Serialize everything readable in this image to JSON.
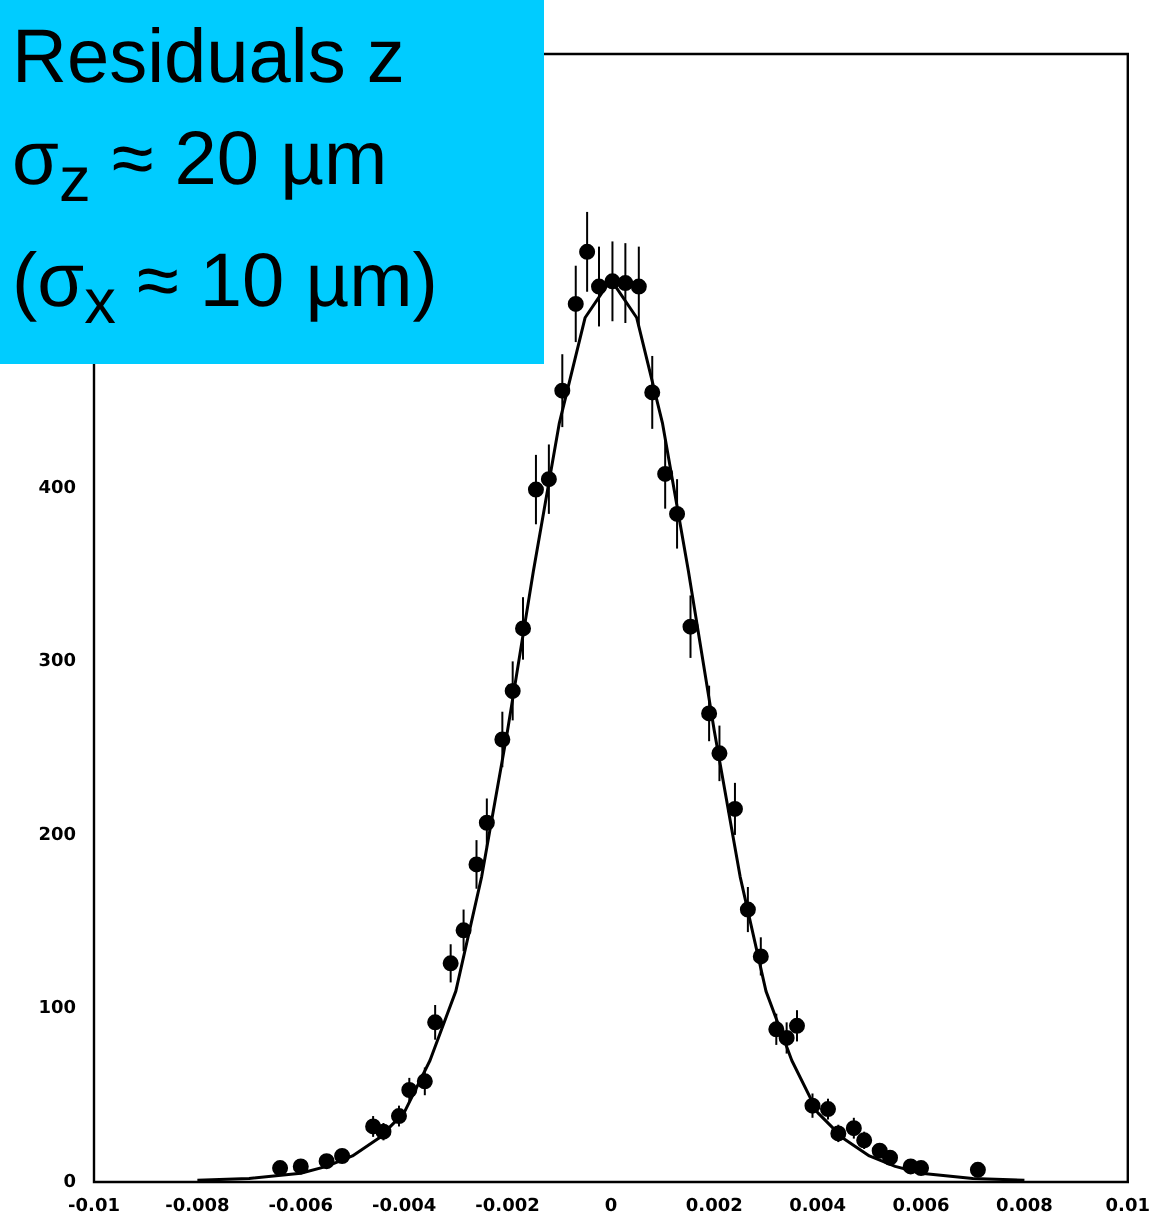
{
  "chart_data": {
    "type": "scatter",
    "annotations": [
      "Residuals z",
      "σ$_{z}$ ≈ 20 µm",
      "(σ$_{x}$ ≈ 10 µm)"
    ],
    "xlim": [
      -0.01,
      0.01
    ],
    "xticks": [
      -0.01,
      -0.008,
      -0.006,
      -0.004,
      -0.002,
      0,
      0.002,
      0.004,
      0.006,
      0.008,
      0.01
    ],
    "ylim": [
      0,
      650
    ],
    "yticks": [
      0,
      100,
      200,
      300,
      400
    ],
    "grid": false,
    "legend": false,
    "series": [
      {
        "marker": "circle",
        "color": "#000000",
        "x": [
          -0.0064,
          -0.006,
          -0.0055,
          -0.0052,
          -0.0046,
          -0.0044,
          -0.0041,
          -0.0039,
          -0.0036,
          -0.0034,
          -0.0031,
          -0.00285,
          -0.0026,
          -0.0024,
          -0.0021,
          -0.0019,
          -0.0017,
          -0.00145,
          -0.0012,
          -0.00094,
          -0.00068,
          -0.00046,
          -0.00023,
          3e-05,
          0.00028,
          0.00054,
          0.0008,
          0.00105,
          0.00128,
          0.00154,
          0.0019,
          0.0021,
          0.0024,
          0.00265,
          0.0029,
          0.0032,
          0.0034,
          0.0036,
          0.0039,
          0.0042,
          0.0044,
          0.0047,
          0.0049,
          0.0052,
          0.0054,
          0.0058,
          0.006,
          0.0071
        ],
        "values": [
          8,
          9,
          12,
          15,
          32,
          29,
          38,
          53,
          58,
          92,
          126,
          145,
          183,
          207,
          255,
          283,
          319,
          399,
          405,
          456,
          506,
          536,
          516,
          519,
          518,
          516,
          455,
          408,
          385,
          320,
          270,
          247,
          215,
          157,
          130,
          88,
          83,
          90,
          44,
          42,
          28,
          31,
          24,
          18,
          14,
          9,
          8,
          7
        ],
        "errors": [
          3,
          3,
          3,
          4,
          6,
          5,
          6,
          7,
          8,
          10,
          11,
          12,
          14,
          14,
          16,
          17,
          18,
          20,
          20,
          21,
          22,
          23,
          23,
          23,
          23,
          23,
          21,
          20,
          20,
          18,
          16,
          16,
          15,
          13,
          11,
          9,
          9,
          9,
          7,
          6,
          5,
          6,
          5,
          4,
          4,
          3,
          3,
          3
        ]
      },
      {
        "type": "line",
        "color": "#000000",
        "x": [
          -0.008,
          -0.007,
          -0.006,
          -0.0055,
          -0.005,
          -0.0045,
          -0.004,
          -0.0035,
          -0.003,
          -0.0025,
          -0.002,
          -0.0015,
          -0.001,
          -0.0005,
          0,
          0.0005,
          0.001,
          0.0015,
          0.002,
          0.0025,
          0.003,
          0.0035,
          0.004,
          0.0045,
          0.005,
          0.0055,
          0.006,
          0.007,
          0.008
        ],
        "values": [
          1,
          2,
          5,
          9,
          15,
          25,
          40,
          70,
          110,
          176,
          260,
          352,
          437,
          498,
          520,
          498,
          437,
          352,
          260,
          176,
          110,
          70,
          40,
          25,
          15,
          9,
          5,
          2,
          1
        ]
      }
    ]
  }
}
